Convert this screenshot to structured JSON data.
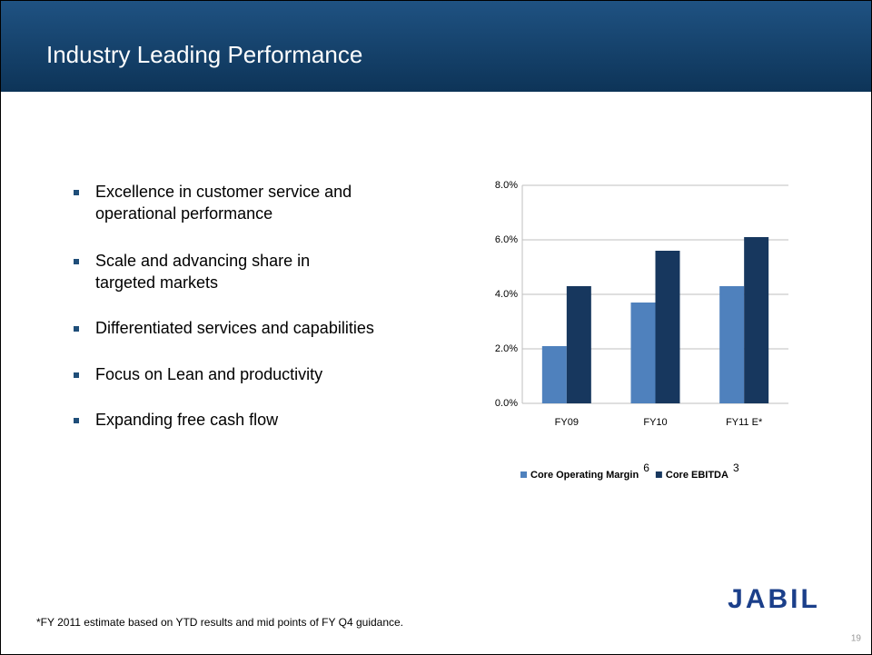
{
  "slide": {
    "title": "Industry Leading Performance",
    "bullets": [
      [
        "Excellence in customer service and",
        "operational performance"
      ],
      [
        "Scale and advancing share in",
        "targeted markets"
      ],
      [
        "Differentiated services and capabilities"
      ],
      [
        "Focus on Lean and productivity"
      ],
      [
        "Expanding free cash flow"
      ]
    ],
    "footnote": "*FY 2011 estimate based on YTD results and  mid points of FY Q4 guidance.",
    "logo": "JABIL",
    "page_number": "19"
  },
  "chart_data": {
    "type": "bar",
    "categories": [
      "FY09",
      "FY10",
      "FY11 E*"
    ],
    "series": [
      {
        "name": "Core Operating Margin",
        "footnote_ref": "6",
        "color": "#4f81bd",
        "values": [
          2.1,
          3.7,
          4.3
        ]
      },
      {
        "name": "Core EBITDA",
        "footnote_ref": "3",
        "color": "#17375e",
        "values": [
          4.3,
          5.6,
          6.1
        ]
      }
    ],
    "ylim": [
      0,
      8
    ],
    "yticks": [
      {
        "value": 0,
        "label": "0.0%"
      },
      {
        "value": 2,
        "label": "2.0%"
      },
      {
        "value": 4,
        "label": "4.0%"
      },
      {
        "value": 6,
        "label": "6.0%"
      },
      {
        "value": 8,
        "label": "8.0%"
      }
    ],
    "grid": true,
    "legend": "bottom"
  }
}
